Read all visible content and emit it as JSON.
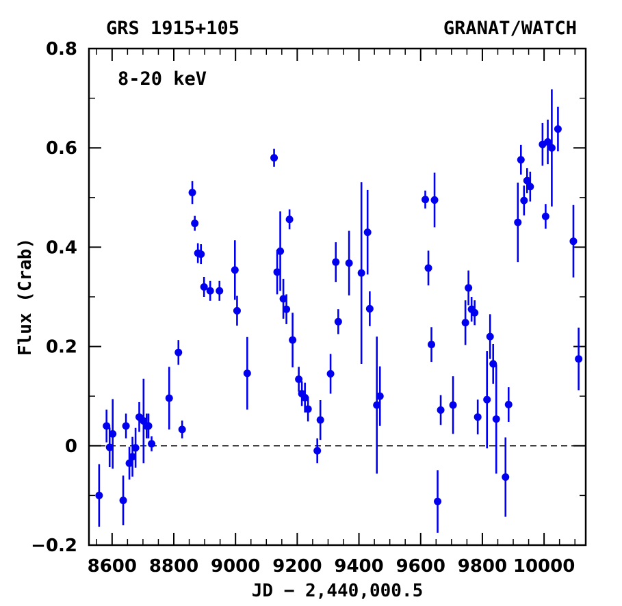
{
  "chart_data": {
    "type": "scatter",
    "title_left": "GRS 1915+105",
    "title_right": "GRANAT/WATCH",
    "annotation": "8-20 keV",
    "xlabel": "JD − 2,440,000.5",
    "ylabel": "Flux (Crab)",
    "xlim": [
      8525,
      10135
    ],
    "ylim": [
      -0.2,
      0.8
    ],
    "x_ticks": [
      8600,
      8800,
      9000,
      9200,
      9400,
      9600,
      9800,
      10000
    ],
    "y_ticks": [
      "-0.2",
      "0",
      "0.2",
      "0.4",
      "0.6",
      "0.8"
    ],
    "reference_line": {
      "y": 0,
      "style": "dashed"
    },
    "marker_color": "#0000ee",
    "points": [
      {
        "x": 8558,
        "y": -0.1,
        "err": 0.063
      },
      {
        "x": 8582,
        "y": 0.04,
        "err": 0.033
      },
      {
        "x": 8592,
        "y": -0.003,
        "err": 0.04
      },
      {
        "x": 8602,
        "y": 0.024,
        "err": 0.07
      },
      {
        "x": 8636,
        "y": -0.11,
        "err": 0.05
      },
      {
        "x": 8645,
        "y": 0.04,
        "err": 0.025
      },
      {
        "x": 8656,
        "y": -0.035,
        "err": 0.033
      },
      {
        "x": 8666,
        "y": -0.022,
        "err": 0.04
      },
      {
        "x": 8676,
        "y": -0.004,
        "err": 0.04
      },
      {
        "x": 8688,
        "y": 0.058,
        "err": 0.03
      },
      {
        "x": 8702,
        "y": 0.05,
        "err": 0.085
      },
      {
        "x": 8712,
        "y": 0.04,
        "err": 0.025
      },
      {
        "x": 8718,
        "y": 0.04,
        "err": 0.025
      },
      {
        "x": 8728,
        "y": 0.004,
        "err": 0.015
      },
      {
        "x": 8785,
        "y": 0.096,
        "err": 0.063
      },
      {
        "x": 8815,
        "y": 0.188,
        "err": 0.025
      },
      {
        "x": 8827,
        "y": 0.033,
        "err": 0.018
      },
      {
        "x": 8860,
        "y": 0.51,
        "err": 0.023
      },
      {
        "x": 8868,
        "y": 0.448,
        "err": 0.015
      },
      {
        "x": 8878,
        "y": 0.388,
        "err": 0.02
      },
      {
        "x": 8888,
        "y": 0.386,
        "err": 0.02
      },
      {
        "x": 8898,
        "y": 0.32,
        "err": 0.02
      },
      {
        "x": 8918,
        "y": 0.312,
        "err": 0.02
      },
      {
        "x": 8948,
        "y": 0.312,
        "err": 0.02
      },
      {
        "x": 8998,
        "y": 0.354,
        "err": 0.06
      },
      {
        "x": 9005,
        "y": 0.272,
        "err": 0.03
      },
      {
        "x": 9038,
        "y": 0.146,
        "err": 0.073
      },
      {
        "x": 9125,
        "y": 0.58,
        "err": 0.018
      },
      {
        "x": 9135,
        "y": 0.35,
        "err": 0.045
      },
      {
        "x": 9145,
        "y": 0.392,
        "err": 0.08
      },
      {
        "x": 9155,
        "y": 0.296,
        "err": 0.04
      },
      {
        "x": 9165,
        "y": 0.275,
        "err": 0.03
      },
      {
        "x": 9175,
        "y": 0.456,
        "err": 0.02
      },
      {
        "x": 9185,
        "y": 0.213,
        "err": 0.055
      },
      {
        "x": 9205,
        "y": 0.134,
        "err": 0.025
      },
      {
        "x": 9215,
        "y": 0.105,
        "err": 0.025
      },
      {
        "x": 9225,
        "y": 0.097,
        "err": 0.03
      },
      {
        "x": 9235,
        "y": 0.074,
        "err": 0.025
      },
      {
        "x": 9265,
        "y": -0.01,
        "err": 0.025
      },
      {
        "x": 9275,
        "y": 0.052,
        "err": 0.04
      },
      {
        "x": 9308,
        "y": 0.145,
        "err": 0.04
      },
      {
        "x": 9325,
        "y": 0.37,
        "err": 0.04
      },
      {
        "x": 9333,
        "y": 0.25,
        "err": 0.025
      },
      {
        "x": 9368,
        "y": 0.368,
        "err": 0.065
      },
      {
        "x": 9408,
        "y": 0.348,
        "err": 0.183
      },
      {
        "x": 9428,
        "y": 0.43,
        "err": 0.085
      },
      {
        "x": 9435,
        "y": 0.276,
        "err": 0.035
      },
      {
        "x": 9458,
        "y": 0.082,
        "err": 0.138
      },
      {
        "x": 9468,
        "y": 0.1,
        "err": 0.06
      },
      {
        "x": 9615,
        "y": 0.496,
        "err": 0.018
      },
      {
        "x": 9625,
        "y": 0.358,
        "err": 0.035
      },
      {
        "x": 9635,
        "y": 0.204,
        "err": 0.035
      },
      {
        "x": 9645,
        "y": 0.495,
        "err": 0.055
      },
      {
        "x": 9655,
        "y": -0.112,
        "err": 0.063
      },
      {
        "x": 9665,
        "y": 0.072,
        "err": 0.03
      },
      {
        "x": 9705,
        "y": 0.082,
        "err": 0.058
      },
      {
        "x": 9745,
        "y": 0.248,
        "err": 0.045
      },
      {
        "x": 9755,
        "y": 0.318,
        "err": 0.035
      },
      {
        "x": 9765,
        "y": 0.275,
        "err": 0.025
      },
      {
        "x": 9775,
        "y": 0.268,
        "err": 0.025
      },
      {
        "x": 9785,
        "y": 0.058,
        "err": 0.035
      },
      {
        "x": 9815,
        "y": 0.093,
        "err": 0.098
      },
      {
        "x": 9825,
        "y": 0.22,
        "err": 0.045
      },
      {
        "x": 9835,
        "y": 0.165,
        "err": 0.04
      },
      {
        "x": 9845,
        "y": 0.054,
        "err": 0.11
      },
      {
        "x": 9875,
        "y": -0.063,
        "err": 0.08
      },
      {
        "x": 9885,
        "y": 0.083,
        "err": 0.035
      },
      {
        "x": 9915,
        "y": 0.45,
        "err": 0.08
      },
      {
        "x": 9925,
        "y": 0.576,
        "err": 0.03
      },
      {
        "x": 9935,
        "y": 0.494,
        "err": 0.03
      },
      {
        "x": 9945,
        "y": 0.534,
        "err": 0.025
      },
      {
        "x": 9955,
        "y": 0.522,
        "err": 0.03
      },
      {
        "x": 9995,
        "y": 0.607,
        "err": 0.043
      },
      {
        "x": 10005,
        "y": 0.462,
        "err": 0.025
      },
      {
        "x": 10012,
        "y": 0.612,
        "err": 0.045
      },
      {
        "x": 10025,
        "y": 0.6,
        "err": 0.118
      },
      {
        "x": 10045,
        "y": 0.638,
        "err": 0.045
      },
      {
        "x": 10095,
        "y": 0.412,
        "err": 0.073
      },
      {
        "x": 10112,
        "y": 0.175,
        "err": 0.063
      }
    ]
  }
}
